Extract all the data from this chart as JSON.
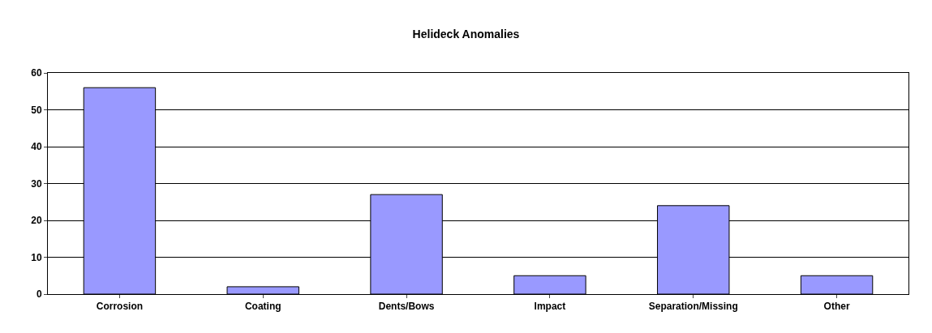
{
  "chart_data": {
    "type": "bar",
    "title": "Helideck Anomalies",
    "categories": [
      "Corrosion",
      "Coating",
      "Dents/Bows",
      "Impact",
      "Separation/Missing",
      "Other"
    ],
    "values": [
      56,
      2,
      27,
      5,
      24,
      5
    ],
    "color": "#9999ff",
    "ylim": [
      0,
      60
    ],
    "yticks": [
      0,
      10,
      20,
      30,
      40,
      50,
      60
    ],
    "grid": "y",
    "legend": false
  }
}
